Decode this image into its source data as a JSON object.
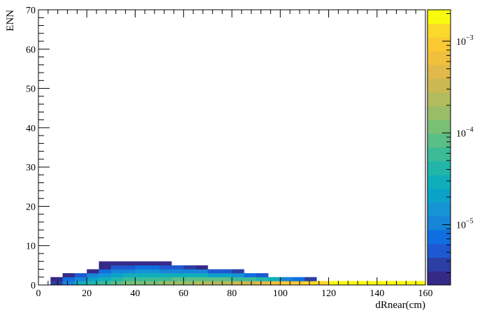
{
  "chart_data": {
    "type": "heatmap",
    "title": "",
    "xlabel": "dRnear(cm)",
    "ylabel": "ENN",
    "xlim": [
      0,
      160
    ],
    "ylim": [
      0,
      70
    ],
    "x_ticks": [
      0,
      20,
      40,
      60,
      80,
      100,
      120,
      140,
      160
    ],
    "y_ticks": [
      0,
      10,
      20,
      30,
      40,
      50,
      60,
      70
    ],
    "bin_width_x": 5,
    "bin_height_y": 1,
    "z_scale": "log",
    "zlim": [
      2.2e-06,
      0.0022
    ],
    "colorbar_labels": [
      {
        "value": 0.001,
        "base": "10",
        "exp": "−3"
      },
      {
        "value": 0.0001,
        "base": "10",
        "exp": "−4"
      },
      {
        "value": 1e-05,
        "base": "10",
        "exp": "−5"
      }
    ],
    "palette": [
      "#352a87",
      "#2b3fa5",
      "#1f59d1",
      "#0f6fe0",
      "#1784d8",
      "#1494d3",
      "#0ba2c9",
      "#10aebb",
      "#21b6a9",
      "#3bbb98",
      "#5abf86",
      "#7abf76",
      "#99bd67",
      "#b3bb5c",
      "#cbb852",
      "#e0b94a",
      "#f0bf3d",
      "#fac934",
      "#fbd92a",
      "#f9fb0e"
    ],
    "columns": [
      {
        "x0": 5,
        "z": [
          4e-06,
          3e-06
        ]
      },
      {
        "x0": 10,
        "z": [
          1.2e-05,
          7e-06,
          3e-06
        ]
      },
      {
        "x0": 15,
        "z": [
          2.5e-05,
          1.2e-05,
          5e-06
        ]
      },
      {
        "x0": 20,
        "z": [
          4e-05,
          2e-05,
          9e-06,
          3e-06
        ]
      },
      {
        "x0": 25,
        "z": [
          6e-05,
          3e-05,
          1.5e-05,
          7e-06,
          3e-06,
          2e-06
        ]
      },
      {
        "x0": 30,
        "z": [
          8e-05,
          4e-05,
          2e-05,
          1e-05,
          5e-06,
          3e-06
        ]
      },
      {
        "x0": 35,
        "z": [
          0.0001,
          5e-05,
          2.5e-05,
          1.2e-05,
          6e-06,
          3e-06
        ]
      },
      {
        "x0": 40,
        "z": [
          0.00012,
          6e-05,
          3e-05,
          1.4e-05,
          7e-06,
          3e-06
        ]
      },
      {
        "x0": 45,
        "z": [
          0.00013,
          6e-05,
          3e-05,
          1.4e-05,
          7e-06,
          3e-06
        ]
      },
      {
        "x0": 50,
        "z": [
          0.00014,
          6e-05,
          3e-05,
          1.2e-05,
          6e-06,
          3e-06
        ]
      },
      {
        "x0": 55,
        "z": [
          0.00016,
          7e-05,
          3e-05,
          1.2e-05,
          6e-06
        ]
      },
      {
        "x0": 60,
        "z": [
          0.00018,
          7e-05,
          2.8e-05,
          1.1e-05,
          4e-06
        ]
      },
      {
        "x0": 65,
        "z": [
          0.0002,
          7e-05,
          2.5e-05,
          9e-06,
          3e-06
        ]
      },
      {
        "x0": 70,
        "z": [
          0.00022,
          7e-05,
          2e-05,
          6e-06
        ]
      },
      {
        "x0": 75,
        "z": [
          0.00026,
          7e-05,
          1.8e-05,
          5e-06
        ]
      },
      {
        "x0": 80,
        "z": [
          0.0003,
          6e-05,
          1.4e-05,
          4e-06
        ]
      },
      {
        "x0": 85,
        "z": [
          0.00036,
          5e-05,
          8e-06
        ]
      },
      {
        "x0": 90,
        "z": [
          0.00045,
          4e-05,
          6e-06
        ]
      },
      {
        "x0": 95,
        "z": [
          0.0006,
          3e-05
        ]
      },
      {
        "x0": 100,
        "z": [
          0.0008,
          1e-05
        ]
      },
      {
        "x0": 105,
        "z": [
          0.001,
          7e-06
        ]
      },
      {
        "x0": 110,
        "z": [
          0.0012,
          4e-06
        ]
      },
      {
        "x0": 115,
        "z": [
          0.0015
        ]
      },
      {
        "x0": 120,
        "z": [
          0.0017
        ]
      },
      {
        "x0": 125,
        "z": [
          0.0018
        ]
      },
      {
        "x0": 130,
        "z": [
          0.0019
        ]
      },
      {
        "x0": 135,
        "z": [
          0.002
        ]
      },
      {
        "x0": 140,
        "z": [
          0.002
        ]
      },
      {
        "x0": 145,
        "z": [
          0.0021
        ]
      },
      {
        "x0": 150,
        "z": [
          0.0021
        ]
      },
      {
        "x0": 155,
        "z": [
          0.0021
        ]
      }
    ]
  }
}
